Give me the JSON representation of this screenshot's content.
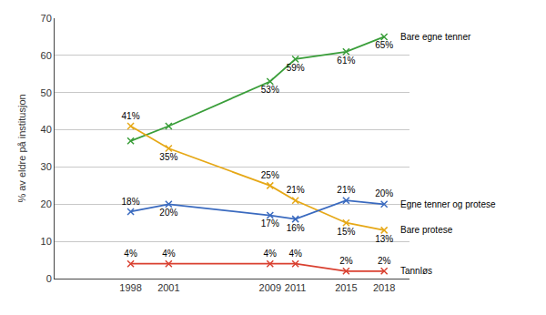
{
  "chart_data": {
    "type": "line",
    "x": [
      1998,
      2001,
      2009,
      2011,
      2015,
      2018
    ],
    "series": [
      {
        "name": "Bare egne tenner",
        "color": "#3a9e3a",
        "marker": "x",
        "values": [
          37,
          41,
          53,
          59,
          61,
          65
        ],
        "value_labels": [
          null,
          null,
          "53%",
          "59%",
          "61%",
          "65%"
        ]
      },
      {
        "name": "Bare protese",
        "color": "#e6a817",
        "marker": "x",
        "values": [
          41,
          35,
          25,
          21,
          15,
          13
        ],
        "value_labels": [
          "41%",
          "35%",
          "25%",
          "21%",
          "15%",
          "13%"
        ]
      },
      {
        "name": "Egne tenner og protese",
        "color": "#3a6abf",
        "marker": "x",
        "values": [
          18,
          20,
          17,
          16,
          21,
          20
        ],
        "value_labels": [
          "18%",
          "20%",
          "17%",
          "16%",
          "21%",
          "20%"
        ]
      },
      {
        "name": "Tannløs",
        "color": "#d94030",
        "marker": "x",
        "values": [
          4,
          4,
          4,
          4,
          2,
          2
        ],
        "value_labels": [
          "4%",
          "4%",
          "4%",
          "4%",
          "2%",
          "2%"
        ]
      }
    ],
    "ylabel": "% av eldre på institusjon",
    "xlim": [
      1992,
      2020
    ],
    "xticks": [
      1998,
      2001,
      2009,
      2011,
      2015,
      2018
    ],
    "ylim": [
      0,
      70
    ],
    "yticks": [
      0,
      10,
      20,
      30,
      40,
      50,
      60,
      70
    ],
    "grid": "y",
    "background_color": "#ffffff",
    "grid_color": "#c8c8c8"
  }
}
